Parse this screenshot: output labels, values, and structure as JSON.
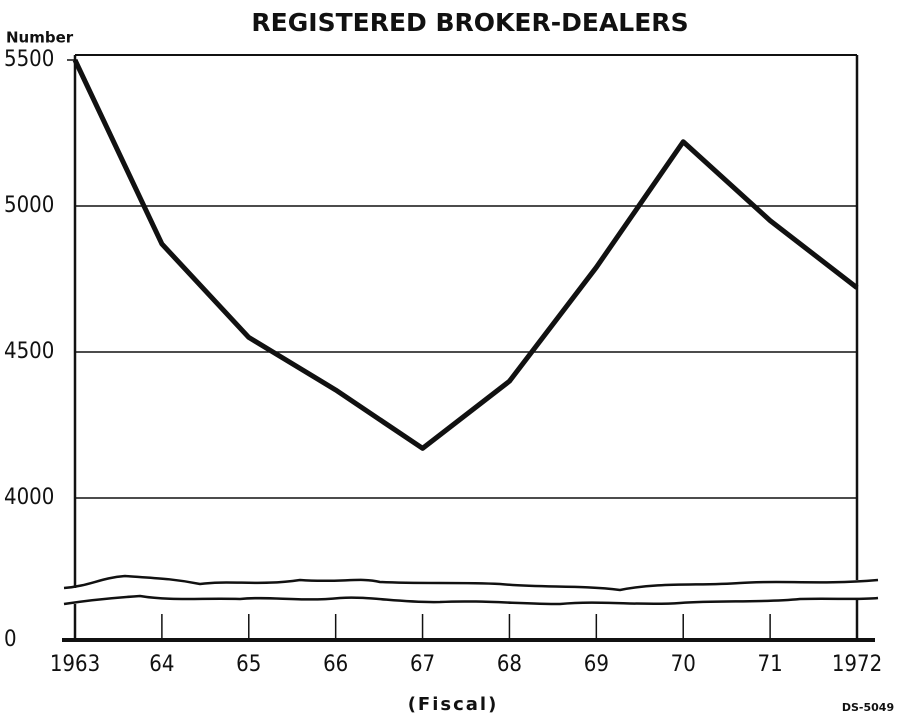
{
  "chart_data": {
    "type": "line",
    "title": "REGISTERED BROKER-DEALERS",
    "y_label": "Number",
    "x_label": "(Fiscal)",
    "note": "DS-5049",
    "categories": [
      "1963",
      "64",
      "65",
      "66",
      "67",
      "68",
      "69",
      "70",
      "71",
      "1972"
    ],
    "series": [
      {
        "name": "Registered broker-dealers",
        "color": "#111111",
        "values": [
          5500,
          4870,
          4550,
          4370,
          4170,
          4400,
          4790,
          5220,
          4950,
          4720
        ]
      }
    ],
    "ylim": [
      0,
      5500
    ],
    "yticks": [
      0,
      4000,
      4500,
      5000,
      5500
    ],
    "grid": true,
    "axis_break": true,
    "legend": false
  }
}
